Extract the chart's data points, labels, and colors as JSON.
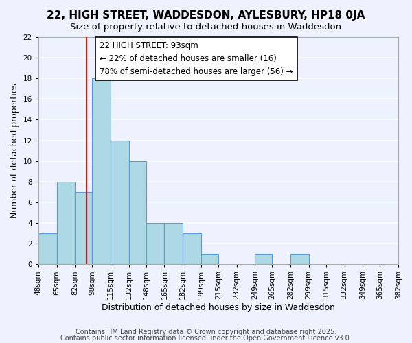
{
  "title": "22, HIGH STREET, WADDESDON, AYLESBURY, HP18 0JA",
  "subtitle": "Size of property relative to detached houses in Waddesdon",
  "xlabel": "Distribution of detached houses by size in Waddesdon",
  "ylabel": "Number of detached properties",
  "bin_edges": [
    48,
    65,
    82,
    98,
    115,
    132,
    148,
    165,
    182,
    199,
    215,
    232,
    249,
    265,
    282,
    299,
    315,
    332,
    349,
    365,
    382
  ],
  "bar_heights": [
    3,
    8,
    7,
    18,
    12,
    10,
    4,
    4,
    3,
    1,
    0,
    0,
    1,
    0,
    1,
    0,
    0,
    0,
    0,
    0
  ],
  "bar_color": "#add8e6",
  "bar_edge_color": "#5b9bd5",
  "red_line_x": 93,
  "ylim": [
    0,
    22
  ],
  "yticks": [
    0,
    2,
    4,
    6,
    8,
    10,
    12,
    14,
    16,
    18,
    20,
    22
  ],
  "annotation_title": "22 HIGH STREET: 93sqm",
  "annotation_line1": "← 22% of detached houses are smaller (16)",
  "annotation_line2": "78% of semi-detached houses are larger (56) →",
  "background_color": "#eef2ff",
  "grid_color": "#ffffff",
  "footer_line1": "Contains HM Land Registry data © Crown copyright and database right 2025.",
  "footer_line2": "Contains public sector information licensed under the Open Government Licence v3.0.",
  "title_fontsize": 11,
  "subtitle_fontsize": 9.5,
  "axis_label_fontsize": 9,
  "tick_label_fontsize": 7.5,
  "annotation_fontsize": 8.5,
  "footer_fontsize": 7
}
